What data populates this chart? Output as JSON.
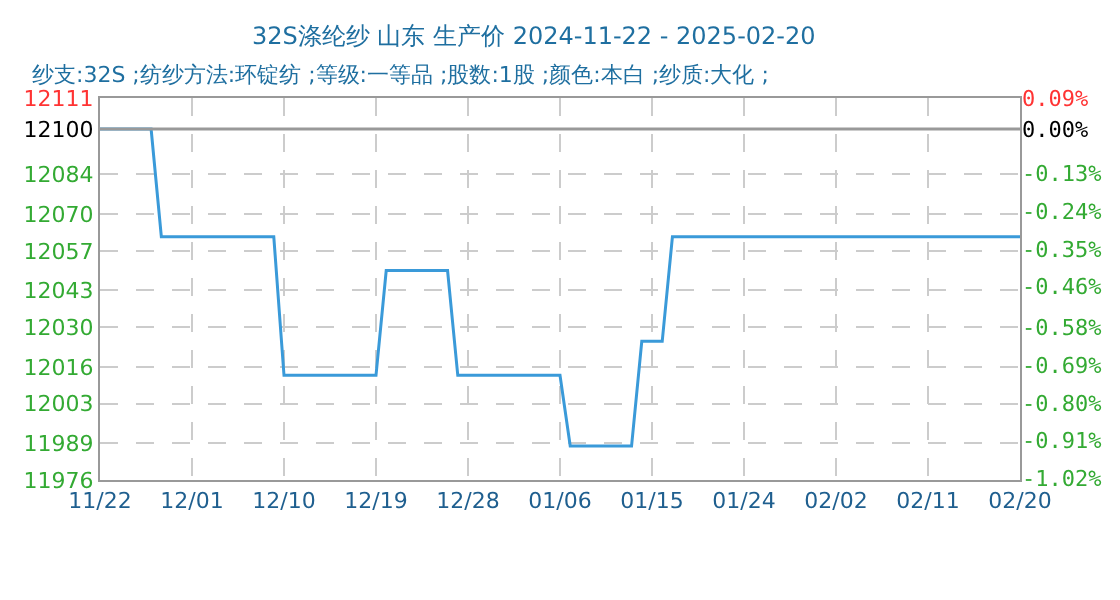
{
  "chart_data": {
    "type": "line",
    "title": "32S涤纶纱 山东 生产价 2024-11-22 - 2025-02-20",
    "subtitle": "纱支:32S ;纺纱方法:环锭纺 ;等级:一等品 ;股数:1股 ;颜色:本白 ;纱质:大化 ;",
    "x": [
      "2024-11-22",
      "2024-11-27",
      "2024-11-28",
      "2024-12-09",
      "2024-12-10",
      "2024-12-19",
      "2024-12-20",
      "2024-12-26",
      "2024-12-27",
      "2025-01-06",
      "2025-01-07",
      "2025-01-13",
      "2025-01-14",
      "2025-01-16",
      "2025-01-17",
      "2025-02-20"
    ],
    "series": [
      {
        "color": "#3a9ad9",
        "values": [
          12100,
          12100,
          12062,
          12062,
          12013,
          12013,
          12050,
          12050,
          12013,
          12013,
          11988,
          11988,
          12025,
          12025,
          12062,
          12062
        ]
      }
    ],
    "xlim": [
      "2024-11-22",
      "2025-02-20"
    ],
    "xticks": [
      {
        "value": "2024-11-22",
        "label": "11/22"
      },
      {
        "value": "2024-12-01",
        "label": "12/01"
      },
      {
        "value": "2024-12-10",
        "label": "12/10"
      },
      {
        "value": "2024-12-19",
        "label": "12/19"
      },
      {
        "value": "2024-12-28",
        "label": "12/28"
      },
      {
        "value": "2025-01-06",
        "label": "01/06"
      },
      {
        "value": "2025-01-15",
        "label": "01/15"
      },
      {
        "value": "2025-01-24",
        "label": "01/24"
      },
      {
        "value": "2025-02-02",
        "label": "02/02"
      },
      {
        "value": "2025-02-11",
        "label": "02/11"
      },
      {
        "value": "2025-02-20",
        "label": "02/20"
      }
    ],
    "ylim": [
      11976,
      12111
    ],
    "yticks": [
      11976,
      11989,
      12003,
      12016,
      12030,
      12043,
      12057,
      12070,
      12084,
      12100,
      12111
    ],
    "y2lim": [
      -1.025,
      0.091
    ],
    "y2ticks": [
      {
        "value": -1.02,
        "label": "-1.02%"
      },
      {
        "value": -0.91,
        "label": "-0.91%"
      },
      {
        "value": -0.8,
        "label": "-0.80%"
      },
      {
        "value": -0.69,
        "label": "-0.69%"
      },
      {
        "value": -0.58,
        "label": "-0.58%"
      },
      {
        "value": -0.46,
        "label": "-0.46%"
      },
      {
        "value": -0.35,
        "label": "-0.35%"
      },
      {
        "value": -0.24,
        "label": "-0.24%"
      },
      {
        "value": -0.13,
        "label": "-0.13%"
      },
      {
        "value": 0,
        "label": "0.00%"
      },
      {
        "value": 0.09,
        "label": "0.09%"
      }
    ],
    "ref_lines": [
      {
        "axis": "y",
        "value": 12100,
        "color": "#999999"
      }
    ],
    "grid": true,
    "marker": "none",
    "line_style": "solid"
  }
}
